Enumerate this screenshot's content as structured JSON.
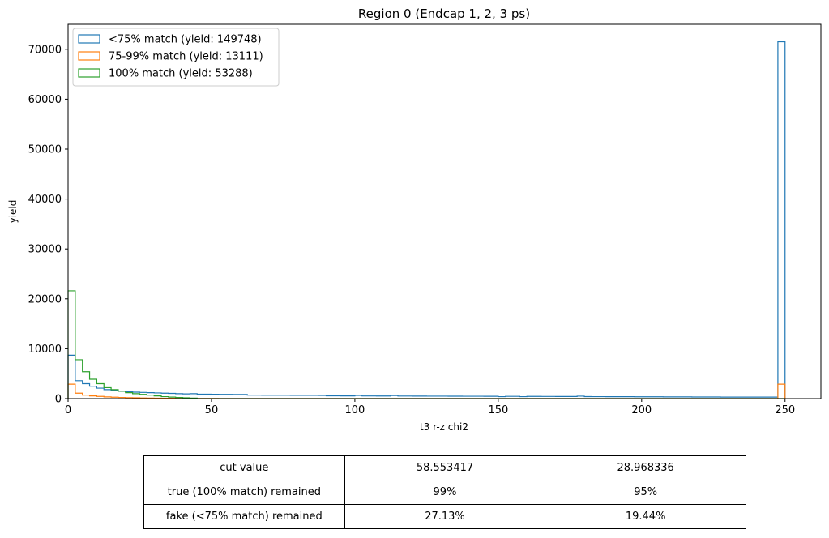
{
  "chart_data": {
    "type": "histogram",
    "title": "Region 0 (Endcap 1, 2, 3 ps)",
    "xlabel": "t3 r-z chi2",
    "ylabel": "yield",
    "xlim": [
      0,
      262.5
    ],
    "ylim": [
      0,
      75000
    ],
    "xticks": [
      0,
      50,
      100,
      150,
      200,
      250
    ],
    "yticks": [
      0,
      10000,
      20000,
      30000,
      40000,
      50000,
      60000,
      70000
    ],
    "legend_position": "top-left",
    "bin_width": 2.5,
    "series": [
      {
        "name": "<75% match (yield: 149748)",
        "color": "#1f77b4",
        "bins": [
          [
            0,
            8700
          ],
          [
            2.5,
            3600
          ],
          [
            5,
            3000
          ],
          [
            7.5,
            2500
          ],
          [
            10,
            2100
          ],
          [
            12.5,
            1800
          ],
          [
            15,
            1600
          ],
          [
            17.5,
            1500
          ],
          [
            20,
            1400
          ],
          [
            22.5,
            1300
          ],
          [
            25,
            1250
          ],
          [
            27.5,
            1200
          ],
          [
            30,
            1150
          ],
          [
            32.5,
            1100
          ],
          [
            35,
            1050
          ],
          [
            37.5,
            1000
          ],
          [
            40,
            950
          ],
          [
            42.5,
            1000
          ],
          [
            45,
            900
          ],
          [
            47.5,
            900
          ],
          [
            50,
            880
          ],
          [
            52.5,
            860
          ],
          [
            55,
            850
          ],
          [
            57.5,
            840
          ],
          [
            60,
            830
          ],
          [
            62.5,
            700
          ],
          [
            65,
            700
          ],
          [
            67.5,
            690
          ],
          [
            70,
            690
          ],
          [
            72.5,
            680
          ],
          [
            75,
            680
          ],
          [
            77.5,
            670
          ],
          [
            80,
            670
          ],
          [
            82.5,
            660
          ],
          [
            85,
            660
          ],
          [
            87.5,
            650
          ],
          [
            90,
            560
          ],
          [
            92.5,
            560
          ],
          [
            95,
            550
          ],
          [
            97.5,
            550
          ],
          [
            100,
            650
          ],
          [
            102.5,
            540
          ],
          [
            105,
            540
          ],
          [
            107.5,
            530
          ],
          [
            110,
            530
          ],
          [
            112.5,
            620
          ],
          [
            115,
            520
          ],
          [
            117.5,
            520
          ],
          [
            120,
            510
          ],
          [
            122.5,
            510
          ],
          [
            125,
            500
          ],
          [
            127.5,
            500
          ],
          [
            130,
            500
          ],
          [
            132.5,
            490
          ],
          [
            135,
            490
          ],
          [
            137.5,
            480
          ],
          [
            140,
            480
          ],
          [
            142.5,
            480
          ],
          [
            145,
            470
          ],
          [
            147.5,
            470
          ],
          [
            150,
            400
          ],
          [
            152.5,
            460
          ],
          [
            155,
            460
          ],
          [
            157.5,
            400
          ],
          [
            160,
            450
          ],
          [
            162.5,
            450
          ],
          [
            165,
            440
          ],
          [
            167.5,
            440
          ],
          [
            170,
            430
          ],
          [
            172.5,
            430
          ],
          [
            175,
            420
          ],
          [
            177.5,
            500
          ],
          [
            180,
            410
          ],
          [
            182.5,
            400
          ],
          [
            185,
            400
          ],
          [
            187.5,
            390
          ],
          [
            190,
            390
          ],
          [
            192.5,
            380
          ],
          [
            195,
            380
          ],
          [
            197.5,
            370
          ],
          [
            200,
            370
          ],
          [
            202.5,
            360
          ],
          [
            205,
            360
          ],
          [
            207.5,
            350
          ],
          [
            210,
            350
          ],
          [
            212.5,
            340
          ],
          [
            215,
            340
          ],
          [
            217.5,
            330
          ],
          [
            220,
            330
          ],
          [
            222.5,
            320
          ],
          [
            225,
            320
          ],
          [
            227.5,
            310
          ],
          [
            230,
            310
          ],
          [
            232.5,
            300
          ],
          [
            235,
            300
          ],
          [
            237.5,
            300
          ],
          [
            240,
            300
          ],
          [
            242.5,
            300
          ],
          [
            245,
            300
          ],
          [
            247.5,
            71500
          ]
        ]
      },
      {
        "name": "75-99% match (yield: 13111)",
        "color": "#ff7f0e",
        "bins": [
          [
            0,
            2900
          ],
          [
            2.5,
            1100
          ],
          [
            5,
            700
          ],
          [
            7.5,
            550
          ],
          [
            10,
            450
          ],
          [
            12.5,
            350
          ],
          [
            15,
            280
          ],
          [
            17.5,
            230
          ],
          [
            20,
            190
          ],
          [
            22.5,
            160
          ],
          [
            25,
            130
          ],
          [
            27.5,
            110
          ],
          [
            30,
            90
          ],
          [
            32.5,
            70
          ],
          [
            35,
            55
          ],
          [
            37.5,
            45
          ],
          [
            40,
            35
          ],
          [
            42.5,
            28
          ],
          [
            45,
            22
          ],
          [
            47.5,
            18
          ],
          [
            50,
            14
          ],
          [
            52.5,
            11
          ],
          [
            55,
            9
          ],
          [
            57.5,
            7
          ],
          [
            60,
            6
          ],
          [
            62.5,
            5
          ],
          [
            65,
            0
          ],
          [
            67.5,
            0
          ],
          [
            70,
            0
          ],
          [
            72.5,
            0
          ],
          [
            75,
            0
          ],
          [
            77.5,
            0
          ],
          [
            80,
            0
          ],
          [
            82.5,
            0
          ],
          [
            85,
            0
          ],
          [
            87.5,
            0
          ],
          [
            90,
            0
          ],
          [
            92.5,
            0
          ],
          [
            95,
            0
          ],
          [
            97.5,
            0
          ],
          [
            100,
            0
          ],
          [
            102.5,
            0
          ],
          [
            105,
            0
          ],
          [
            107.5,
            0
          ],
          [
            110,
            0
          ],
          [
            112.5,
            0
          ],
          [
            115,
            0
          ],
          [
            117.5,
            0
          ],
          [
            120,
            0
          ],
          [
            122.5,
            0
          ],
          [
            125,
            0
          ],
          [
            127.5,
            0
          ],
          [
            130,
            0
          ],
          [
            132.5,
            0
          ],
          [
            135,
            0
          ],
          [
            137.5,
            0
          ],
          [
            140,
            0
          ],
          [
            142.5,
            0
          ],
          [
            145,
            0
          ],
          [
            147.5,
            0
          ],
          [
            150,
            0
          ],
          [
            152.5,
            0
          ],
          [
            155,
            0
          ],
          [
            157.5,
            0
          ],
          [
            160,
            0
          ],
          [
            162.5,
            0
          ],
          [
            165,
            0
          ],
          [
            167.5,
            0
          ],
          [
            170,
            0
          ],
          [
            172.5,
            0
          ],
          [
            175,
            0
          ],
          [
            177.5,
            0
          ],
          [
            180,
            0
          ],
          [
            182.5,
            0
          ],
          [
            185,
            0
          ],
          [
            187.5,
            0
          ],
          [
            190,
            0
          ],
          [
            192.5,
            0
          ],
          [
            195,
            0
          ],
          [
            197.5,
            0
          ],
          [
            200,
            0
          ],
          [
            202.5,
            0
          ],
          [
            205,
            0
          ],
          [
            207.5,
            0
          ],
          [
            210,
            0
          ],
          [
            212.5,
            0
          ],
          [
            215,
            0
          ],
          [
            217.5,
            0
          ],
          [
            220,
            0
          ],
          [
            222.5,
            0
          ],
          [
            225,
            0
          ],
          [
            227.5,
            0
          ],
          [
            230,
            0
          ],
          [
            232.5,
            0
          ],
          [
            235,
            0
          ],
          [
            237.5,
            0
          ],
          [
            240,
            0
          ],
          [
            242.5,
            0
          ],
          [
            245,
            0
          ],
          [
            247.5,
            2900
          ]
        ]
      },
      {
        "name": "100% match (yield: 53288)",
        "color": "#2ca02c",
        "bins": [
          [
            0,
            21600
          ],
          [
            2.5,
            7800
          ],
          [
            5,
            5400
          ],
          [
            7.5,
            3900
          ],
          [
            10,
            3000
          ],
          [
            12.5,
            2200
          ],
          [
            15,
            1800
          ],
          [
            17.5,
            1500
          ],
          [
            20,
            1200
          ],
          [
            22.5,
            1000
          ],
          [
            25,
            850
          ],
          [
            27.5,
            700
          ],
          [
            30,
            550
          ],
          [
            32.5,
            400
          ],
          [
            35,
            300
          ],
          [
            37.5,
            220
          ],
          [
            40,
            160
          ],
          [
            42.5,
            110
          ],
          [
            45,
            0
          ],
          [
            47.5,
            0
          ],
          [
            50,
            0
          ],
          [
            52.5,
            0
          ],
          [
            55,
            0
          ],
          [
            57.5,
            0
          ],
          [
            60,
            0
          ],
          [
            62.5,
            0
          ],
          [
            65,
            0
          ],
          [
            67.5,
            0
          ],
          [
            70,
            0
          ],
          [
            72.5,
            0
          ],
          [
            75,
            0
          ],
          [
            77.5,
            0
          ],
          [
            80,
            0
          ],
          [
            82.5,
            0
          ],
          [
            85,
            0
          ],
          [
            87.5,
            0
          ],
          [
            90,
            0
          ],
          [
            92.5,
            0
          ],
          [
            95,
            0
          ],
          [
            97.5,
            0
          ],
          [
            100,
            0
          ],
          [
            102.5,
            0
          ],
          [
            105,
            0
          ],
          [
            107.5,
            0
          ],
          [
            110,
            0
          ],
          [
            112.5,
            0
          ],
          [
            115,
            0
          ],
          [
            117.5,
            0
          ],
          [
            120,
            0
          ],
          [
            122.5,
            0
          ],
          [
            125,
            0
          ],
          [
            127.5,
            0
          ],
          [
            130,
            0
          ],
          [
            132.5,
            0
          ],
          [
            135,
            0
          ],
          [
            137.5,
            0
          ],
          [
            140,
            0
          ],
          [
            142.5,
            0
          ],
          [
            145,
            0
          ],
          [
            147.5,
            0
          ],
          [
            150,
            0
          ],
          [
            152.5,
            0
          ],
          [
            155,
            0
          ],
          [
            157.5,
            0
          ],
          [
            160,
            0
          ],
          [
            162.5,
            0
          ],
          [
            165,
            0
          ],
          [
            167.5,
            0
          ],
          [
            170,
            0
          ],
          [
            172.5,
            0
          ],
          [
            175,
            0
          ],
          [
            177.5,
            0
          ],
          [
            180,
            0
          ],
          [
            182.5,
            0
          ],
          [
            185,
            0
          ],
          [
            187.5,
            0
          ],
          [
            190,
            0
          ],
          [
            192.5,
            0
          ],
          [
            195,
            0
          ],
          [
            197.5,
            0
          ],
          [
            200,
            0
          ],
          [
            202.5,
            0
          ],
          [
            205,
            0
          ],
          [
            207.5,
            0
          ],
          [
            210,
            0
          ],
          [
            212.5,
            0
          ],
          [
            215,
            0
          ],
          [
            217.5,
            0
          ],
          [
            220,
            0
          ],
          [
            222.5,
            0
          ],
          [
            225,
            0
          ],
          [
            227.5,
            0
          ],
          [
            230,
            0
          ],
          [
            232.5,
            0
          ],
          [
            235,
            0
          ],
          [
            237.5,
            0
          ],
          [
            240,
            0
          ],
          [
            242.5,
            0
          ],
          [
            245,
            0
          ],
          [
            247.5,
            0
          ]
        ]
      }
    ]
  },
  "table": {
    "rows": [
      [
        "cut value",
        "58.553417",
        "28.968336"
      ],
      [
        "true (100% match) remained",
        "99%",
        "95%"
      ],
      [
        "fake (<75% match) remained",
        "27.13%",
        "19.44%"
      ]
    ]
  }
}
